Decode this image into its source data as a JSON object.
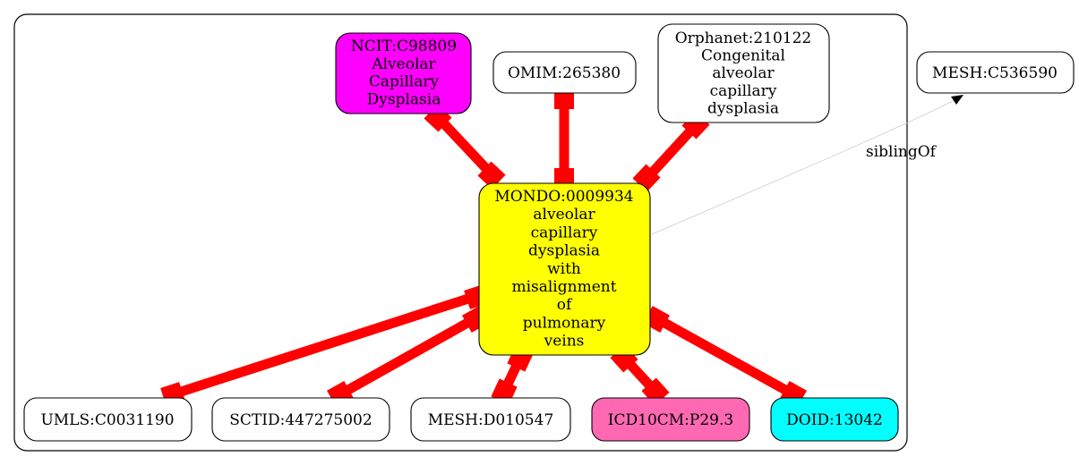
{
  "cluster": {
    "border_color": "#000000"
  },
  "nodes": {
    "center": {
      "lines": [
        "MONDO:0009934",
        "alveolar",
        "capillary",
        "dysplasia",
        "with",
        "misalignment",
        "of",
        "pulmonary",
        "veins"
      ],
      "fill": "#ffff00"
    },
    "ncit": {
      "lines": [
        "NCIT:C98809",
        "Alveolar",
        "Capillary",
        "Dysplasia"
      ],
      "fill": "#ff00ff"
    },
    "omim": {
      "lines": [
        "OMIM:265380"
      ],
      "fill": "#ffffff"
    },
    "orphanet": {
      "lines": [
        "Orphanet:210122",
        "Congenital",
        "alveolar",
        "capillary",
        "dysplasia"
      ],
      "fill": "#ffffff"
    },
    "mesh_c": {
      "lines": [
        "MESH:C536590"
      ],
      "fill": "#ffffff"
    },
    "umls": {
      "lines": [
        "UMLS:C0031190"
      ],
      "fill": "#ffffff"
    },
    "sctid": {
      "lines": [
        "SCTID:447275002"
      ],
      "fill": "#ffffff"
    },
    "mesh_d": {
      "lines": [
        "MESH:D010547"
      ],
      "fill": "#ffffff"
    },
    "icd10cm": {
      "lines": [
        "ICD10CM:P29.3"
      ],
      "fill": "#ff69b4"
    },
    "doid": {
      "lines": [
        "DOID:13042"
      ],
      "fill": "#00ffff"
    }
  },
  "edges": {
    "equivalence_color": "#ff0000",
    "sibling_label": "siblingOf"
  }
}
